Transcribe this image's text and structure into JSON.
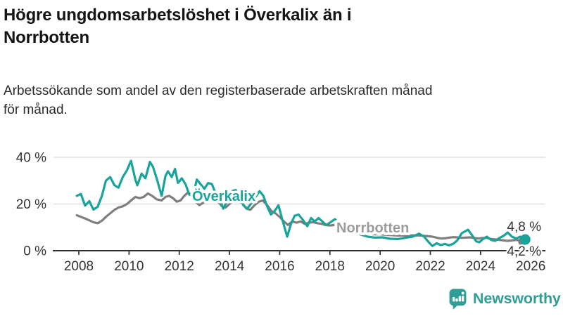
{
  "header": {
    "title": "Högre ungdomsarbetslöshet i Överkalix än i Norrbotten",
    "title_lines": [
      "Högre ungdomsarbetslöshet i Överkalix än i",
      "Norrbotten"
    ],
    "subtitle": "Arbetssökande som andel av den registerbaserade arbetskraften månad för månad.",
    "subtitle_lines": [
      "Arbetssökande som andel av den registerbaserade arbetskraften månad",
      "för månad."
    ]
  },
  "brand": {
    "name": "Newsworthy",
    "color": "#2E9E96"
  },
  "colors": {
    "overkalix": "#19A39A",
    "norrbotten_line": "#7E7E7E",
    "norrbotten_label": "#9C9C9C",
    "grid": "#d9d9d9",
    "axis": "#2f2f2f",
    "text": "#333333"
  },
  "chart_data": {
    "type": "line",
    "title": "Högre ungdomsarbetslöshet i Överkalix än i Norrbotten",
    "xlabel": "",
    "ylabel": "Arbetssökande som andel av den registerbaserade arbetskraften",
    "grid": true,
    "xlim": [
      2007.85,
      2026.6
    ],
    "ylim": [
      0,
      44
    ],
    "x_axis": {
      "ticks": [
        "2008",
        "2010",
        "2012",
        "2014",
        "2016",
        "2018",
        "2020",
        "2022",
        "2024",
        "2026"
      ]
    },
    "y_axis": {
      "ticks": [
        {
          "label": "0 %",
          "value": 0
        },
        {
          "label": "20 %",
          "value": 20
        },
        {
          "label": "40 %",
          "value": 40
        }
      ],
      "gridline_values": [
        20,
        40
      ]
    },
    "series": [
      {
        "name": "Överkalix",
        "color": "#19A39A",
        "label_color": "#19A39A",
        "end_label": "4,8 %",
        "end_value": 4.8,
        "points": [
          [
            2007.92,
            23.5
          ],
          [
            2008.08,
            24.3
          ],
          [
            2008.25,
            19.3
          ],
          [
            2008.42,
            21.2
          ],
          [
            2008.58,
            17.6
          ],
          [
            2008.75,
            18.8
          ],
          [
            2008.92,
            23.5
          ],
          [
            2009.08,
            30
          ],
          [
            2009.25,
            31.5
          ],
          [
            2009.42,
            28
          ],
          [
            2009.58,
            27
          ],
          [
            2009.75,
            31.5
          ],
          [
            2009.92,
            34.5
          ],
          [
            2010.08,
            38.5
          ],
          [
            2010.25,
            30.5
          ],
          [
            2010.33,
            28
          ],
          [
            2010.5,
            33
          ],
          [
            2010.65,
            31
          ],
          [
            2010.83,
            38
          ],
          [
            2010.95,
            36
          ],
          [
            2011.1,
            31
          ],
          [
            2011.3,
            23.5
          ],
          [
            2011.45,
            32
          ],
          [
            2011.55,
            34
          ],
          [
            2011.7,
            31.5
          ],
          [
            2011.83,
            35
          ],
          [
            2011.95,
            29
          ],
          [
            2012.1,
            31
          ],
          [
            2012.25,
            28.5
          ],
          [
            2012.4,
            24
          ],
          [
            2012.55,
            23.5
          ],
          [
            2012.7,
            30.5
          ],
          [
            2012.85,
            28.5
          ],
          [
            2013.0,
            26.5
          ],
          [
            2013.15,
            29
          ],
          [
            2013.3,
            28.5
          ],
          [
            2013.45,
            24.5
          ],
          [
            2013.6,
            22.5
          ],
          [
            2013.75,
            18
          ],
          [
            2013.9,
            21
          ],
          [
            2014.1,
            25.5
          ],
          [
            2014.25,
            26
          ],
          [
            2014.4,
            23
          ],
          [
            2014.55,
            19.5
          ],
          [
            2014.7,
            18
          ],
          [
            2014.85,
            20
          ],
          [
            2015.0,
            22.5
          ],
          [
            2015.2,
            25.5
          ],
          [
            2015.35,
            23.5
          ],
          [
            2015.5,
            19
          ],
          [
            2015.65,
            15.5
          ],
          [
            2015.8,
            17
          ],
          [
            2015.95,
            19.5
          ],
          [
            2016.1,
            13.5
          ],
          [
            2016.3,
            6
          ],
          [
            2016.45,
            11.5
          ],
          [
            2016.6,
            15
          ],
          [
            2016.75,
            15.5
          ],
          [
            2016.9,
            13.5
          ],
          [
            2017.1,
            10.5
          ],
          [
            2017.25,
            14
          ],
          [
            2017.4,
            12.5
          ],
          [
            2017.55,
            14
          ],
          [
            2017.7,
            12.5
          ],
          [
            2017.85,
            11
          ],
          [
            2018.0,
            12
          ],
          [
            2018.2,
            13.5
          ],
          [
            2018.4,
            11.5
          ],
          [
            2018.65,
            9.5
          ],
          [
            2018.9,
            8
          ],
          [
            2019.2,
            7
          ],
          [
            2019.5,
            6
          ],
          [
            2019.8,
            5.6
          ],
          [
            2020.1,
            5.7
          ],
          [
            2020.4,
            5.1
          ],
          [
            2020.7,
            5
          ],
          [
            2021.0,
            5.5
          ],
          [
            2021.3,
            6
          ],
          [
            2021.55,
            7.3
          ],
          [
            2021.75,
            6
          ],
          [
            2021.92,
            3.8
          ],
          [
            2022.08,
            2
          ],
          [
            2022.25,
            3.2
          ],
          [
            2022.42,
            2.4
          ],
          [
            2022.58,
            2.9
          ],
          [
            2022.75,
            2.3
          ],
          [
            2022.92,
            3
          ],
          [
            2023.08,
            4.5
          ],
          [
            2023.25,
            7.5
          ],
          [
            2023.5,
            9
          ],
          [
            2023.67,
            6.5
          ],
          [
            2023.83,
            4
          ],
          [
            2023.95,
            3.6
          ],
          [
            2024.1,
            5
          ],
          [
            2024.25,
            6
          ],
          [
            2024.42,
            4.6
          ],
          [
            2024.58,
            4.2
          ],
          [
            2024.75,
            5.4
          ],
          [
            2024.92,
            6.4
          ],
          [
            2025.08,
            7.8
          ],
          [
            2025.25,
            6
          ],
          [
            2025.42,
            5.2
          ],
          [
            2025.58,
            6
          ],
          [
            2025.75,
            4.8
          ]
        ]
      },
      {
        "name": "Norrbotten",
        "color": "#7E7E7E",
        "label_color": "#9C9C9C",
        "end_label": "4,2 %",
        "end_value": 4.2,
        "points": [
          [
            2007.92,
            15.2
          ],
          [
            2008.08,
            14.5
          ],
          [
            2008.25,
            13.8
          ],
          [
            2008.42,
            13
          ],
          [
            2008.58,
            12.2
          ],
          [
            2008.75,
            11.8
          ],
          [
            2008.92,
            12.8
          ],
          [
            2009.08,
            14.5
          ],
          [
            2009.25,
            16
          ],
          [
            2009.42,
            17.5
          ],
          [
            2009.58,
            18.5
          ],
          [
            2009.75,
            19
          ],
          [
            2009.92,
            20
          ],
          [
            2010.08,
            21.5
          ],
          [
            2010.25,
            23
          ],
          [
            2010.42,
            22.5
          ],
          [
            2010.58,
            23
          ],
          [
            2010.75,
            24.5
          ],
          [
            2010.92,
            23.5
          ],
          [
            2011.1,
            22
          ],
          [
            2011.3,
            21.5
          ],
          [
            2011.45,
            23
          ],
          [
            2011.6,
            23.5
          ],
          [
            2011.75,
            22.5
          ],
          [
            2011.9,
            21
          ],
          [
            2012.05,
            21.5
          ],
          [
            2012.2,
            23.5
          ],
          [
            2012.35,
            25
          ],
          [
            2012.5,
            23.5
          ],
          [
            2012.65,
            21
          ],
          [
            2012.8,
            19.5
          ],
          [
            2012.95,
            20.5
          ],
          [
            2013.1,
            21.5
          ],
          [
            2013.25,
            22.5
          ],
          [
            2013.4,
            22
          ],
          [
            2013.55,
            21
          ],
          [
            2013.7,
            19
          ],
          [
            2013.85,
            18.5
          ],
          [
            2014.0,
            20
          ],
          [
            2014.17,
            21.5
          ],
          [
            2014.33,
            21
          ],
          [
            2014.5,
            20.5
          ],
          [
            2014.67,
            18
          ],
          [
            2014.83,
            17.5
          ],
          [
            2015.0,
            19.5
          ],
          [
            2015.17,
            21
          ],
          [
            2015.33,
            21.5
          ],
          [
            2015.5,
            19.5
          ],
          [
            2015.67,
            17
          ],
          [
            2015.83,
            16
          ],
          [
            2016.0,
            14.5
          ],
          [
            2016.17,
            12.5
          ],
          [
            2016.33,
            11
          ],
          [
            2016.5,
            12.5
          ],
          [
            2016.67,
            12
          ],
          [
            2016.83,
            12.5
          ],
          [
            2017.0,
            11.5
          ],
          [
            2017.17,
            12
          ],
          [
            2017.33,
            12.2
          ],
          [
            2017.5,
            11.8
          ],
          [
            2017.67,
            11.5
          ],
          [
            2017.83,
            11
          ],
          [
            2018.0,
            10.8
          ],
          [
            2018.17,
            11
          ],
          [
            2018.38,
            10.5
          ],
          [
            2018.6,
            10
          ],
          [
            2018.85,
            9
          ],
          [
            2019.1,
            8.3
          ],
          [
            2019.4,
            7.4
          ],
          [
            2019.7,
            7
          ],
          [
            2020.0,
            7
          ],
          [
            2020.35,
            6.7
          ],
          [
            2020.7,
            6.5
          ],
          [
            2021.05,
            6.5
          ],
          [
            2021.4,
            6.6
          ],
          [
            2021.7,
            6.4
          ],
          [
            2021.92,
            6.2
          ],
          [
            2022.08,
            6
          ],
          [
            2022.25,
            5.6
          ],
          [
            2022.42,
            5.2
          ],
          [
            2022.58,
            5.3
          ],
          [
            2022.75,
            5.6
          ],
          [
            2022.92,
            5.8
          ],
          [
            2023.08,
            5.7
          ],
          [
            2023.25,
            5.5
          ],
          [
            2023.42,
            5.6
          ],
          [
            2023.58,
            5.7
          ],
          [
            2023.75,
            5.4
          ],
          [
            2023.92,
            5.2
          ],
          [
            2024.08,
            5.4
          ],
          [
            2024.25,
            5.5
          ],
          [
            2024.42,
            5
          ],
          [
            2024.58,
            4.8
          ],
          [
            2024.75,
            4.6
          ],
          [
            2024.92,
            4.4
          ],
          [
            2025.08,
            4.2
          ],
          [
            2025.25,
            4.4
          ],
          [
            2025.42,
            4.6
          ],
          [
            2025.58,
            4.3
          ],
          [
            2025.75,
            4.2
          ]
        ]
      }
    ],
    "legend_position": "inline-end-of-line-labels"
  }
}
